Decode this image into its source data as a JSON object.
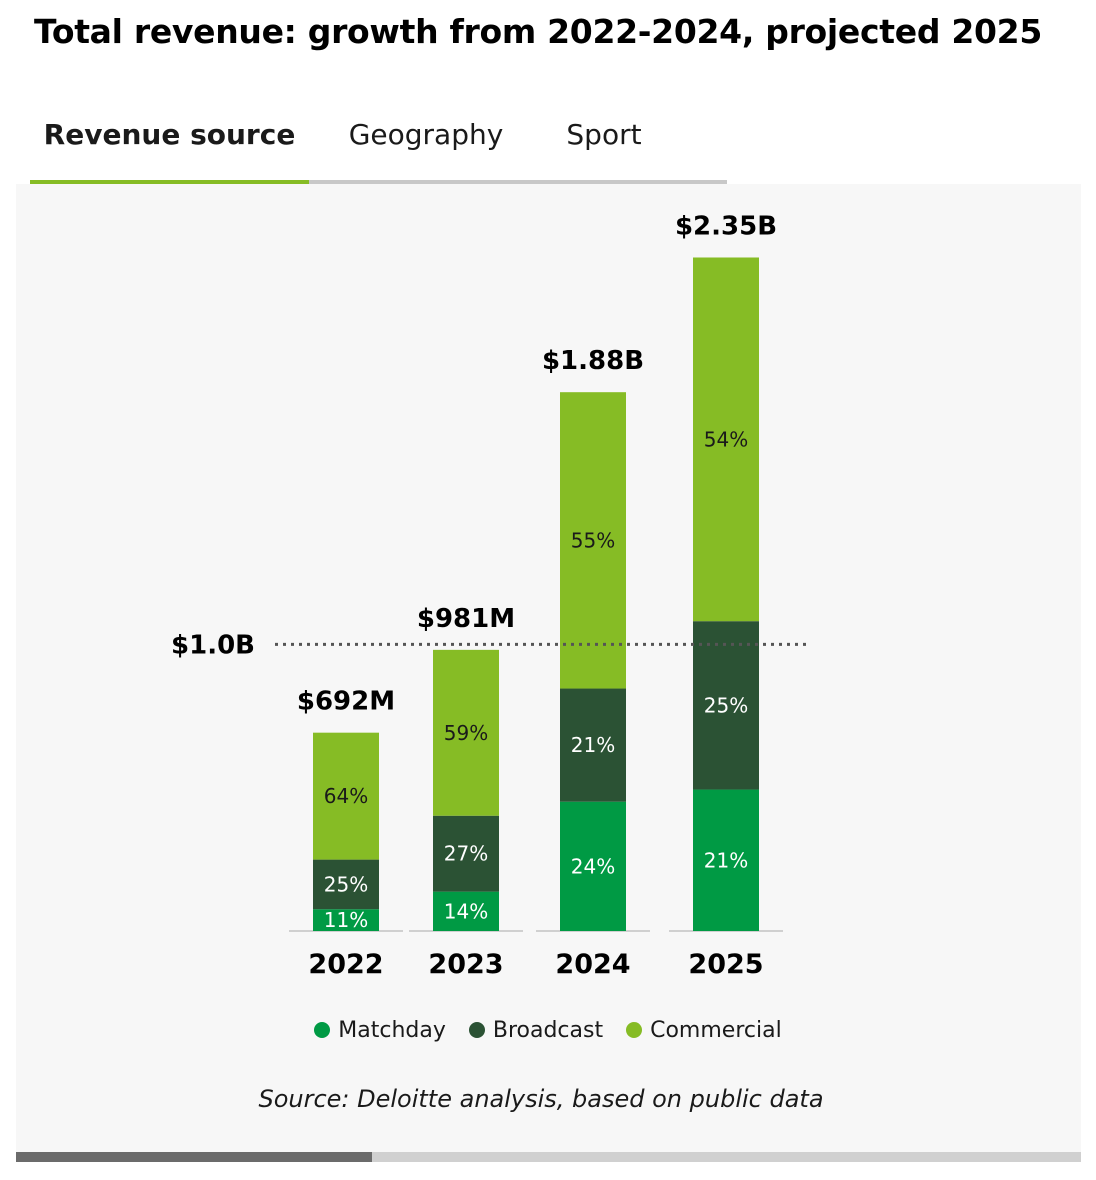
{
  "title": "Total revenue: growth from 2022-2024, projected 2025",
  "tabs": [
    {
      "label": "Revenue source",
      "active": true
    },
    {
      "label": "Geography",
      "active": false
    },
    {
      "label": "Sport",
      "active": false
    }
  ],
  "colors": {
    "matchday": "#009a44",
    "broadcast": "#2b5234",
    "commercial": "#86bc25",
    "accent": "#86bc25"
  },
  "chart_data": {
    "type": "bar",
    "stacked": true,
    "categories": [
      "2022",
      "2023",
      "2024",
      "2025"
    ],
    "totals": [
      692,
      981,
      1880,
      2350
    ],
    "total_labels": [
      "$692M",
      "$981M",
      "$1.88B",
      "$2.35B"
    ],
    "unit": "$M",
    "series": [
      {
        "name": "Matchday",
        "shares": [
          11,
          14,
          24,
          21
        ],
        "labels": [
          "11%",
          "14%",
          "24%",
          "21%"
        ]
      },
      {
        "name": "Broadcast",
        "shares": [
          25,
          27,
          21,
          25
        ],
        "labels": [
          "25%",
          "27%",
          "21%",
          "25%"
        ]
      },
      {
        "name": "Commercial",
        "shares": [
          64,
          59,
          55,
          54
        ],
        "labels": [
          "64%",
          "59%",
          "55%",
          "54%"
        ]
      }
    ],
    "reference_line": {
      "value": 1000,
      "label": "$1.0B",
      "style": "dotted"
    },
    "ylim": [
      0,
      2500
    ],
    "legend": [
      "Matchday",
      "Broadcast",
      "Commercial"
    ],
    "legend_position": "bottom"
  },
  "source": "Source: Deloitte analysis, based on public data"
}
